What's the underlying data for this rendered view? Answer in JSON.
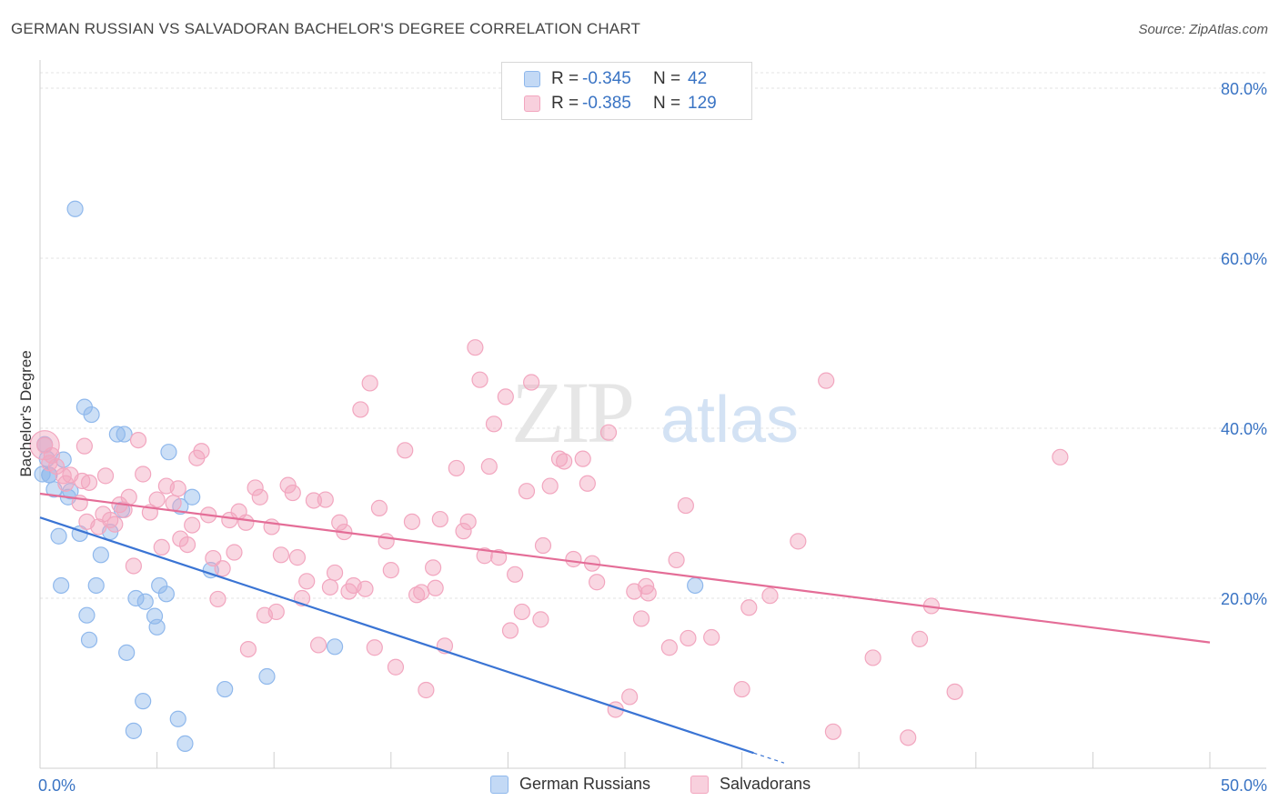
{
  "title": "GERMAN RUSSIAN VS SALVADORAN BACHELOR'S DEGREE CORRELATION CHART",
  "source": "Source: ZipAtlas.com",
  "watermark": {
    "zip": "ZIP",
    "atlas": "atlas"
  },
  "legend_top": [
    {
      "r_label": "R =",
      "r_value": "-0.345",
      "n_label": "N =",
      "n_value": "42",
      "color": "#8fb8ec"
    },
    {
      "r_label": "R =",
      "r_value": "-0.385",
      "n_label": "N =",
      "n_value": "129",
      "color": "#f2a6bf"
    }
  ],
  "legend_bottom": [
    {
      "name": "German Russians",
      "color": "#8fb8ec"
    },
    {
      "name": "Salvadorans",
      "color": "#f2a6bf"
    }
  ],
  "chart_data": {
    "type": "scatter",
    "title": "GERMAN RUSSIAN VS SALVADORAN BACHELOR'S DEGREE CORRELATION CHART",
    "xlabel": "",
    "ylabel": "Bachelor's Degree",
    "xlim": [
      0,
      50
    ],
    "ylim": [
      0,
      80
    ],
    "x_tick_labels": [
      "0.0%",
      "50.0%"
    ],
    "y_tick_labels": [
      "20.0%",
      "40.0%",
      "60.0%",
      "80.0%"
    ],
    "y_ticks": [
      20,
      40,
      60,
      80
    ],
    "grid": true,
    "legend": "top-center",
    "series": [
      {
        "name": "German Russians",
        "color": "#3a74d4",
        "fill": "#8fb8ec",
        "r": -0.345,
        "n": 42,
        "trend": {
          "x0": 0,
          "y0": 29.5,
          "x1": 30.5,
          "y1": 1.8,
          "dash_to_x": 31.8
        },
        "points": [
          [
            1.5,
            65.8
          ],
          [
            0.2,
            38.1
          ],
          [
            0.3,
            36.4
          ],
          [
            0.4,
            34.5
          ],
          [
            0.4,
            34.5
          ],
          [
            0.6,
            32.8
          ],
          [
            1.9,
            42.5
          ],
          [
            2.2,
            41.6
          ],
          [
            3.3,
            39.3
          ],
          [
            3.6,
            39.3
          ],
          [
            1.0,
            36.3
          ],
          [
            1.3,
            32.6
          ],
          [
            1.2,
            31.9
          ],
          [
            3.5,
            30.4
          ],
          [
            5.5,
            37.2
          ],
          [
            6.5,
            31.9
          ],
          [
            6.0,
            30.8
          ],
          [
            0.8,
            27.3
          ],
          [
            1.7,
            27.6
          ],
          [
            3.0,
            27.8
          ],
          [
            2.6,
            25.1
          ],
          [
            0.9,
            21.5
          ],
          [
            2.4,
            21.5
          ],
          [
            4.1,
            20.0
          ],
          [
            4.5,
            19.6
          ],
          [
            5.1,
            21.5
          ],
          [
            5.4,
            20.5
          ],
          [
            4.9,
            17.9
          ],
          [
            5.0,
            16.6
          ],
          [
            2.0,
            18.0
          ],
          [
            2.1,
            15.1
          ],
          [
            3.7,
            13.6
          ],
          [
            7.3,
            23.3
          ],
          [
            7.9,
            9.3
          ],
          [
            9.7,
            10.8
          ],
          [
            12.6,
            14.3
          ],
          [
            28.0,
            21.5
          ],
          [
            4.4,
            7.9
          ],
          [
            4.0,
            4.4
          ],
          [
            5.9,
            5.8
          ],
          [
            6.2,
            2.9
          ],
          [
            0.1,
            34.6
          ]
        ]
      },
      {
        "name": "Salvadorans",
        "color": "#e46d97",
        "fill": "#f2a6bf",
        "r": -0.385,
        "n": 129,
        "trend": {
          "x0": 0,
          "y0": 32.3,
          "x1": 50,
          "y1": 14.8
        },
        "points": [
          [
            0.2,
            38.0
          ],
          [
            0.5,
            36.8
          ],
          [
            0.7,
            35.5
          ],
          [
            1.0,
            34.4
          ],
          [
            1.1,
            33.5
          ],
          [
            1.3,
            34.5
          ],
          [
            1.7,
            31.2
          ],
          [
            1.9,
            37.9
          ],
          [
            2.1,
            33.6
          ],
          [
            2.5,
            28.4
          ],
          [
            2.7,
            29.9
          ],
          [
            2.8,
            34.4
          ],
          [
            3.0,
            29.2
          ],
          [
            3.2,
            28.7
          ],
          [
            3.4,
            31.0
          ],
          [
            3.6,
            30.4
          ],
          [
            3.8,
            31.9
          ],
          [
            4.0,
            23.8
          ],
          [
            4.2,
            38.6
          ],
          [
            4.4,
            34.6
          ],
          [
            4.7,
            30.1
          ],
          [
            5.0,
            31.6
          ],
          [
            5.2,
            26.0
          ],
          [
            5.4,
            33.2
          ],
          [
            5.7,
            31.2
          ],
          [
            5.9,
            32.9
          ],
          [
            6.0,
            27.0
          ],
          [
            6.3,
            26.3
          ],
          [
            6.5,
            28.6
          ],
          [
            6.7,
            36.5
          ],
          [
            6.9,
            37.3
          ],
          [
            7.2,
            29.8
          ],
          [
            7.4,
            24.7
          ],
          [
            7.6,
            19.9
          ],
          [
            7.8,
            23.5
          ],
          [
            8.1,
            29.2
          ],
          [
            8.3,
            25.4
          ],
          [
            8.5,
            30.2
          ],
          [
            8.8,
            28.9
          ],
          [
            8.9,
            14.0
          ],
          [
            9.2,
            33.0
          ],
          [
            9.4,
            31.9
          ],
          [
            9.6,
            18.0
          ],
          [
            9.9,
            28.4
          ],
          [
            10.1,
            18.4
          ],
          [
            10.3,
            25.1
          ],
          [
            10.6,
            33.3
          ],
          [
            10.8,
            32.4
          ],
          [
            11.0,
            24.8
          ],
          [
            11.2,
            20.0
          ],
          [
            11.4,
            22.0
          ],
          [
            11.7,
            31.5
          ],
          [
            11.9,
            14.5
          ],
          [
            12.2,
            31.6
          ],
          [
            12.4,
            21.3
          ],
          [
            12.6,
            23.0
          ],
          [
            12.8,
            28.9
          ],
          [
            13.0,
            27.8
          ],
          [
            13.2,
            20.8
          ],
          [
            13.4,
            21.5
          ],
          [
            13.7,
            42.2
          ],
          [
            13.9,
            21.1
          ],
          [
            14.1,
            45.3
          ],
          [
            14.3,
            14.2
          ],
          [
            14.5,
            30.6
          ],
          [
            14.8,
            26.7
          ],
          [
            15.0,
            23.3
          ],
          [
            15.2,
            11.9
          ],
          [
            15.6,
            37.4
          ],
          [
            15.9,
            29.0
          ],
          [
            16.1,
            20.4
          ],
          [
            16.3,
            20.7
          ],
          [
            16.5,
            9.2
          ],
          [
            16.8,
            23.6
          ],
          [
            16.9,
            21.2
          ],
          [
            17.1,
            29.3
          ],
          [
            17.3,
            14.4
          ],
          [
            17.8,
            35.3
          ],
          [
            18.1,
            27.9
          ],
          [
            18.3,
            29.0
          ],
          [
            18.6,
            49.5
          ],
          [
            18.8,
            45.7
          ],
          [
            19.0,
            25.0
          ],
          [
            19.2,
            35.5
          ],
          [
            19.4,
            40.5
          ],
          [
            19.6,
            24.8
          ],
          [
            19.9,
            43.7
          ],
          [
            20.1,
            16.2
          ],
          [
            20.3,
            22.8
          ],
          [
            20.6,
            18.4
          ],
          [
            20.8,
            32.6
          ],
          [
            21.0,
            45.4
          ],
          [
            21.4,
            17.5
          ],
          [
            21.5,
            26.2
          ],
          [
            21.8,
            33.2
          ],
          [
            22.2,
            36.4
          ],
          [
            22.4,
            36.1
          ],
          [
            22.8,
            24.6
          ],
          [
            23.2,
            36.4
          ],
          [
            23.4,
            33.5
          ],
          [
            23.6,
            24.1
          ],
          [
            23.8,
            21.9
          ],
          [
            24.3,
            39.5
          ],
          [
            24.6,
            6.9
          ],
          [
            25.2,
            8.4
          ],
          [
            25.4,
            20.8
          ],
          [
            25.7,
            17.6
          ],
          [
            25.9,
            21.4
          ],
          [
            26.0,
            20.6
          ],
          [
            26.9,
            14.2
          ],
          [
            27.2,
            24.5
          ],
          [
            27.6,
            30.9
          ],
          [
            27.7,
            15.3
          ],
          [
            28.7,
            15.4
          ],
          [
            30.0,
            9.3
          ],
          [
            30.3,
            18.9
          ],
          [
            31.2,
            20.3
          ],
          [
            32.4,
            26.7
          ],
          [
            33.6,
            45.6
          ],
          [
            33.9,
            4.3
          ],
          [
            35.6,
            13.0
          ],
          [
            37.1,
            3.6
          ],
          [
            37.6,
            15.2
          ],
          [
            38.1,
            19.1
          ],
          [
            39.1,
            9.0
          ],
          [
            43.6,
            36.6
          ],
          [
            1.8,
            33.8
          ],
          [
            2.0,
            29.0
          ],
          [
            0.4,
            35.9
          ]
        ]
      }
    ]
  }
}
